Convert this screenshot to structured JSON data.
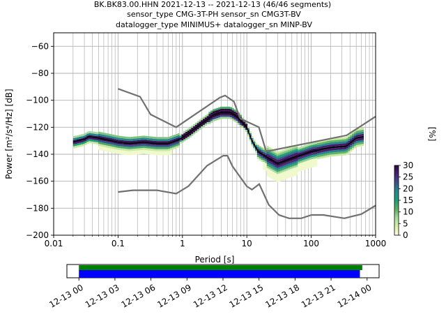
{
  "title_lines": [
    "BK.BK83.00.HHN   2021-12-13 -- 2021-12-13  (46/46 segments)",
    "sensor_type CMG-3T-PH sensor_sn CMG3T-BV",
    "datalogger_type MINIMUS+ datalogger_sn MINP-BV"
  ],
  "chart_data": {
    "type": "heatmap",
    "xlabel": "Period [s]",
    "ylabel": "Power [m²/s⁴/Hz] [dB]",
    "xscale": "log",
    "xlim": [
      0.01,
      1000
    ],
    "ylim": [
      -200,
      -50
    ],
    "xticks": [
      0.01,
      0.1,
      1,
      10,
      100,
      1000
    ],
    "xtick_labels": [
      "0.01",
      "0.1",
      "1",
      "10",
      "100",
      "1000"
    ],
    "yticks": [
      -200,
      -180,
      -160,
      -140,
      -120,
      -100,
      -80,
      -60
    ],
    "ytick_labels": [
      "−200",
      "−180",
      "−160",
      "−140",
      "−120",
      "−100",
      "−80",
      "−60"
    ],
    "grid": true,
    "colorbar": {
      "label": "[%]",
      "range": [
        0,
        30
      ],
      "ticks": [
        0,
        5,
        10,
        15,
        20,
        25,
        30
      ],
      "tick_labels": [
        "0",
        "5",
        "10",
        "15",
        "20",
        "25",
        "30"
      ]
    },
    "noise_models": [
      {
        "name": "high",
        "points": [
          [
            0.1,
            -91.5
          ],
          [
            0.22,
            -97.4
          ],
          [
            0.32,
            -110.5
          ],
          [
            0.8,
            -120
          ],
          [
            3.8,
            -98
          ],
          [
            4.6,
            -96.5
          ],
          [
            6.3,
            -101
          ],
          [
            7.9,
            -113.5
          ],
          [
            15.4,
            -120
          ],
          [
            20,
            -138
          ],
          [
            354.8,
            -126
          ],
          [
            1000,
            -112
          ]
        ]
      },
      {
        "name": "low",
        "points": [
          [
            0.1,
            -168
          ],
          [
            0.17,
            -166.7
          ],
          [
            0.4,
            -166.7
          ],
          [
            0.8,
            -169.2
          ],
          [
            1.24,
            -163.7
          ],
          [
            2.4,
            -148.6
          ],
          [
            4.3,
            -141.1
          ],
          [
            5,
            -141.1
          ],
          [
            6,
            -149
          ],
          [
            10,
            -163.8
          ],
          [
            12,
            -166.2
          ],
          [
            15.6,
            -162.1
          ],
          [
            21.9,
            -177.5
          ],
          [
            31.6,
            -185
          ],
          [
            45,
            -187.5
          ],
          [
            70,
            -187.5
          ],
          [
            101,
            -185
          ],
          [
            154,
            -185
          ],
          [
            328,
            -187.5
          ],
          [
            600,
            -184.4
          ],
          [
            1000,
            -178
          ]
        ]
      }
    ],
    "mean_psd": {
      "points": [
        [
          0.02,
          -131
        ],
        [
          0.03,
          -129
        ],
        [
          0.035,
          -127
        ],
        [
          0.05,
          -128
        ],
        [
          0.08,
          -130
        ],
        [
          0.1,
          -131
        ],
        [
          0.15,
          -132
        ],
        [
          0.25,
          -131
        ],
        [
          0.4,
          -132
        ],
        [
          0.6,
          -132
        ],
        [
          0.9,
          -129
        ],
        [
          1.3,
          -124
        ],
        [
          2,
          -117
        ],
        [
          3,
          -111
        ],
        [
          4,
          -109
        ],
        [
          5.5,
          -109
        ],
        [
          7,
          -112
        ],
        [
          10,
          -120
        ],
        [
          12,
          -130
        ],
        [
          15,
          -138
        ],
        [
          20,
          -142
        ],
        [
          30,
          -147
        ],
        [
          50,
          -143
        ],
        [
          100,
          -138
        ],
        [
          200,
          -135
        ],
        [
          350,
          -134
        ],
        [
          500,
          -128
        ],
        [
          650,
          -127
        ]
      ]
    },
    "time_axis": {
      "tick_labels": [
        "12-13 00",
        "12-13 03",
        "12-13 06",
        "12-13 09",
        "12-13 12",
        "12-13 15",
        "12-13 18",
        "12-13 21",
        "12-14 00"
      ],
      "range_hours": [
        -1,
        25
      ],
      "data_available": {
        "start_hours": 0,
        "end_hours": 23.6,
        "color": "#008000"
      },
      "segments_used": {
        "start_hours": 0,
        "end_hours": 23.4,
        "color": "#0000ff"
      }
    }
  },
  "colors": {
    "noise_model": "#707070",
    "mean": "#000000",
    "grid": "#b0b0b0",
    "colormap": [
      "#ffffe5",
      "#d9f0a3",
      "#a6dba0",
      "#5aae61",
      "#1b9e77",
      "#238b8d",
      "#3b528b",
      "#482173",
      "#2d0a3e"
    ]
  }
}
